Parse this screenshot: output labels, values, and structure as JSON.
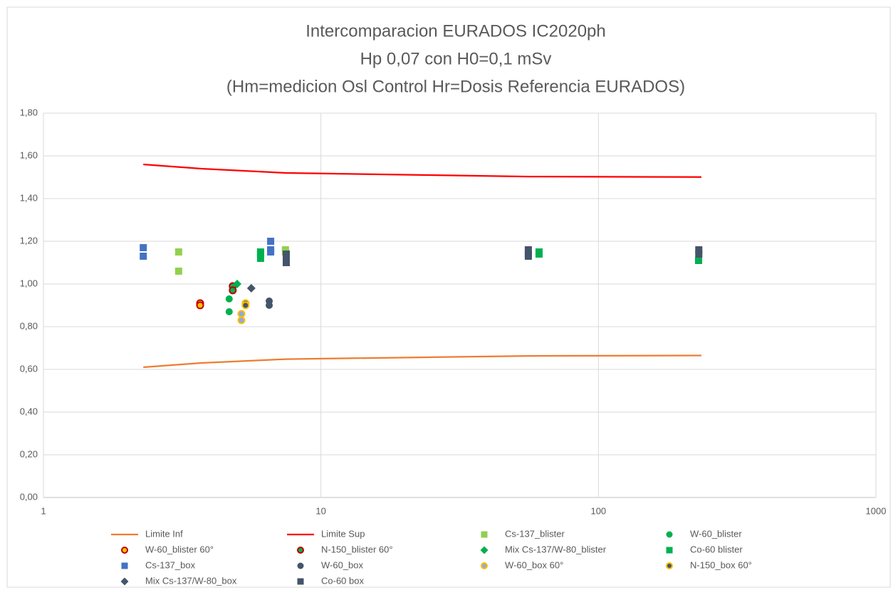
{
  "chart_data": {
    "type": "scatter",
    "title": [
      "Intercomparacion EURADOS IC2020ph",
      "Hp 0,07 con H0=0,1 mSv",
      "(Hm=medicion Osl Control Hr=Dosis Referencia EURADOS)"
    ],
    "xscale": "log",
    "xlim": [
      1,
      1000
    ],
    "xticks": [
      1,
      10,
      100,
      1000
    ],
    "ylim": [
      0,
      1.8
    ],
    "yticks": [
      {
        "value": 0,
        "label": "0,00"
      },
      {
        "value": 0.2,
        "label": "0,20"
      },
      {
        "value": 0.4,
        "label": "0,40"
      },
      {
        "value": 0.6,
        "label": "0,60"
      },
      {
        "value": 0.8,
        "label": "0,80"
      },
      {
        "value": 1.0,
        "label": "1,00"
      },
      {
        "value": 1.2,
        "label": "1,20"
      },
      {
        "value": 1.4,
        "label": "1,40"
      },
      {
        "value": 1.6,
        "label": "1,60"
      },
      {
        "value": 1.8,
        "label": "1,80"
      }
    ],
    "grid": true,
    "legend": "bottom",
    "series": [
      {
        "name": "Limite Inf",
        "marker": "line",
        "color": "#ed7d31",
        "x": [
          2.29,
          3.7,
          7.5,
          56,
          235
        ],
        "values": [
          0.61,
          0.63,
          0.648,
          0.663,
          0.665
        ]
      },
      {
        "name": "Limite Sup",
        "marker": "line",
        "color": "#ff0000",
        "x": [
          2.29,
          3.7,
          7.5,
          56,
          235
        ],
        "values": [
          1.56,
          1.54,
          1.52,
          1.503,
          1.501
        ]
      },
      {
        "name": "Cs-137_blister",
        "marker": "square",
        "color": "#92d050",
        "x": [
          3.07,
          3.07,
          7.45,
          7.45
        ],
        "values": [
          1.15,
          1.06,
          1.16,
          1.15
        ]
      },
      {
        "name": "W-60_blister",
        "marker": "circle",
        "color": "#00b050",
        "x": [
          4.67,
          4.67
        ],
        "values": [
          0.93,
          0.87
        ]
      },
      {
        "name": "W-60_blister 60°",
        "marker": "circle",
        "color": "#ffc000",
        "edgecolor": "#c00000",
        "x": [
          3.67,
          3.67
        ],
        "values": [
          0.91,
          0.9
        ]
      },
      {
        "name": "N-150_blister 60°",
        "marker": "circle",
        "color": "#00b050",
        "edgecolor": "#c00000",
        "x": [
          4.81,
          4.81
        ],
        "values": [
          0.99,
          0.97
        ]
      },
      {
        "name": "Mix Cs-137/W-80_blister",
        "marker": "diamond",
        "color": "#00b050",
        "x": [
          4.99
        ],
        "values": [
          1.0
        ]
      },
      {
        "name": "Co-60 blister",
        "marker": "square",
        "color": "#00b050",
        "x": [
          6.06,
          6.06,
          6.06,
          61.1,
          61.1,
          229.6
        ],
        "values": [
          1.15,
          1.14,
          1.12,
          1.15,
          1.14,
          1.11
        ]
      },
      {
        "name": "Cs-137_box",
        "marker": "square",
        "color": "#4472c4",
        "x": [
          2.29,
          2.29,
          6.59,
          6.59,
          6.59
        ],
        "values": [
          1.17,
          1.13,
          1.2,
          1.16,
          1.15
        ]
      },
      {
        "name": "W-60_box",
        "marker": "circle",
        "color": "#44546a",
        "x": [
          6.51,
          6.51
        ],
        "values": [
          0.92,
          0.9
        ]
      },
      {
        "name": "W-60_box 60°",
        "marker": "circle",
        "color": "#8faadc",
        "edgecolor": "#ffc000",
        "x": [
          5.17,
          5.17
        ],
        "values": [
          0.86,
          0.83
        ]
      },
      {
        "name": "N-150_box 60°",
        "marker": "circle",
        "color": "#44546a",
        "edgecolor": "#ffc000",
        "x": [
          5.35,
          5.35
        ],
        "values": [
          0.91,
          0.9
        ]
      },
      {
        "name": "Mix Cs-137/W-80_box",
        "marker": "diamond",
        "color": "#44546a",
        "x": [
          5.61
        ],
        "values": [
          0.98
        ]
      },
      {
        "name": "Co-60 box",
        "marker": "square",
        "color": "#44546a",
        "x": [
          7.5,
          7.5,
          7.5,
          55.9,
          55.9,
          55.9,
          230,
          230
        ],
        "values": [
          1.14,
          1.12,
          1.1,
          1.16,
          1.14,
          1.13,
          1.16,
          1.14
        ]
      }
    ]
  }
}
